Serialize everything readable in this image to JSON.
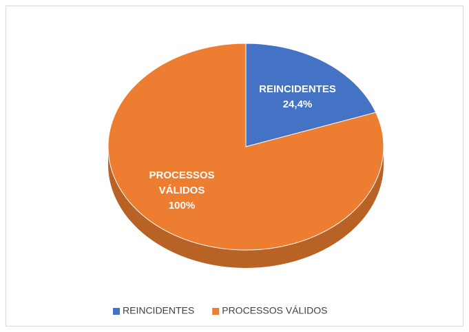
{
  "chart_data": {
    "type": "pie",
    "categories": [
      "REINCIDENTES",
      "PROCESSOS VÁLIDOS"
    ],
    "values": [
      24.4,
      100
    ],
    "value_labels": [
      "24,4%",
      "100%"
    ],
    "colors": [
      "#4472c4",
      "#ed7d31"
    ],
    "legend": "bottom"
  }
}
